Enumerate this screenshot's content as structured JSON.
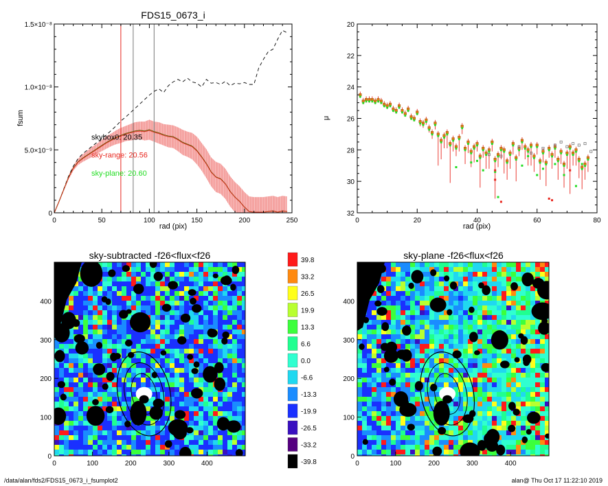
{
  "footer": {
    "left": "/data/alan/fds2/FDS15_0673_i_fsumplot2",
    "right": "alan@  Thu Oct 17 11:22:10 2019"
  },
  "colors": {
    "red": "#e8261e",
    "band": "#f4a3a3",
    "green": "#22dd22",
    "grey": "#777777",
    "orange": "#e07a10"
  },
  "chart_data": [
    {
      "type": "line",
      "title": "FDS15_0673_i",
      "xlabel": "rad (pix)",
      "ylabel": "fsum",
      "xlim": [
        0,
        250
      ],
      "ylim": [
        0,
        1.5e-08
      ],
      "x_ticks": [
        "0",
        "50",
        "100",
        "150",
        "200",
        "250"
      ],
      "y_ticks": [
        "0",
        "5.0×10⁻⁹",
        "1.0×10⁻⁸",
        "1.5×10⁻⁸"
      ],
      "y_tick_values": [
        0,
        5e-09,
        1e-08,
        1.5e-08
      ],
      "vlines": [
        {
          "x": 70,
          "color": "red"
        },
        {
          "x": 83,
          "color": "grey"
        },
        {
          "x": 105,
          "color": "grey"
        }
      ],
      "annotations": [
        {
          "text": "skybox0: 20.35",
          "color": "black",
          "x": 39,
          "y": 5.8e-09
        },
        {
          "text": "sky-range: 20.56",
          "color": "red",
          "x": 39,
          "y": 4.4e-09
        },
        {
          "text": "sky-plane: 20.60",
          "color": "green",
          "x": 39,
          "y": 2.95e-09
        }
      ],
      "series": [
        {
          "style": "dashed",
          "x": [
            0,
            5,
            10,
            15,
            20,
            25,
            30,
            35,
            40,
            45,
            50,
            55,
            60,
            65,
            70,
            75,
            80,
            85,
            90,
            95,
            100,
            105,
            110,
            115,
            120,
            125,
            130,
            135,
            140,
            145,
            150,
            155,
            160,
            165,
            170,
            175,
            180,
            185,
            190,
            195,
            200,
            205,
            210,
            215,
            220,
            225,
            230,
            235,
            240,
            245
          ],
          "y": [
            0,
            9e-10,
            1.9e-09,
            2.9e-09,
            3.7e-09,
            4.3e-09,
            4.7e-09,
            5e-09,
            5.3e-09,
            5.6e-09,
            5.9e-09,
            6.2e-09,
            6.55e-09,
            6.9e-09,
            7.3e-09,
            7.6e-09,
            7.95e-09,
            8.3e-09,
            8.65e-09,
            9e-09,
            9.35e-09,
            9.65e-09,
            9.85e-09,
            9.55e-09,
            1.01e-08,
            1.04e-08,
            1.06e-08,
            1.04e-08,
            1.07e-08,
            1.04e-08,
            1.03e-08,
            1e-08,
            1.06e-08,
            1.03e-08,
            1.035e-08,
            1.02e-08,
            1.045e-08,
            1.01e-08,
            1.03e-08,
            1.025e-08,
            1.035e-08,
            1.02e-08,
            1.02e-08,
            1.15e-08,
            1.22e-08,
            1.28e-08,
            1.3e-08,
            1.38e-08,
            1.45e-08,
            1.43e-08
          ]
        },
        {
          "style": "solid-with-band",
          "x": [
            0,
            5,
            10,
            15,
            20,
            25,
            30,
            35,
            40,
            45,
            50,
            55,
            60,
            65,
            70,
            75,
            80,
            85,
            90,
            95,
            100,
            105,
            110,
            115,
            120,
            125,
            130,
            135,
            140,
            145,
            150,
            155,
            160,
            165,
            170,
            175,
            180,
            185,
            190,
            195,
            200,
            205,
            210,
            215,
            220,
            225,
            230,
            235,
            240,
            245
          ],
          "y": [
            0,
            9e-10,
            1.85e-09,
            2.8e-09,
            3.55e-09,
            4.05e-09,
            4.35e-09,
            4.6e-09,
            4.85e-09,
            5.1e-09,
            5.35e-09,
            5.6e-09,
            5.8e-09,
            6e-09,
            6.15e-09,
            6.3e-09,
            6.4e-09,
            6.5e-09,
            6.55e-09,
            6.5e-09,
            6.6e-09,
            6.45e-09,
            6.35e-09,
            6.2e-09,
            6.1e-09,
            6.05e-09,
            5.85e-09,
            5.6e-09,
            5.45e-09,
            5.3e-09,
            4.95e-09,
            4.45e-09,
            3.9e-09,
            3.25e-09,
            2.85e-09,
            2.7e-09,
            2.3e-09,
            1.7e-09,
            1.25e-09,
            9e-10,
            4.5e-10,
            1e-10,
            5e-11,
            5e-11,
            5e-11,
            1e-10,
            1.5e-10,
            5e-11,
            1.5e-10,
            1e-10
          ],
          "err": [
            0,
            5e-11,
            1e-10,
            1.5e-10,
            2e-10,
            2.5e-10,
            3e-10,
            3.5e-10,
            4e-10,
            4e-10,
            4.5e-10,
            5e-10,
            5e-10,
            5.5e-10,
            6e-10,
            6e-10,
            6.5e-10,
            7e-10,
            7e-10,
            7.5e-10,
            8e-10,
            8e-10,
            8.5e-10,
            8.5e-10,
            9e-10,
            9e-10,
            9.5e-10,
            1e-09,
            1e-09,
            1.05e-09,
            1.1e-09,
            1.1e-09,
            1.15e-09,
            1.15e-09,
            1.2e-09,
            1.2e-09,
            1.2e-09,
            1.2e-09,
            1.2e-09,
            1.2e-09,
            1.2e-09,
            1.2e-09,
            1.2e-09,
            1.2e-09,
            1.2e-09,
            1.2e-09,
            1.2e-09,
            1.2e-09,
            1.2e-09,
            1.2e-09
          ]
        }
      ]
    },
    {
      "type": "scatter",
      "title": "",
      "xlabel": "rad (pix)",
      "ylabel": "μ",
      "xlim": [
        0,
        80
      ],
      "ylim": [
        32,
        20
      ],
      "x_ticks": [
        "0",
        "20",
        "40",
        "60",
        "80"
      ],
      "y_ticks": [
        "20",
        "22",
        "24",
        "26",
        "28",
        "30",
        "32"
      ],
      "points": {
        "x": [
          1,
          2,
          3,
          4,
          5,
          6,
          7,
          8,
          9,
          10,
          11,
          12,
          13,
          14,
          15,
          16,
          17,
          18,
          19,
          20,
          21,
          22,
          23,
          24,
          25,
          26,
          27,
          28,
          29,
          30,
          31,
          32,
          33,
          34,
          35,
          36,
          37,
          38,
          39,
          40,
          41,
          42,
          43,
          44,
          45,
          46,
          47,
          48,
          49,
          50,
          51,
          52,
          53,
          54,
          55,
          56,
          57,
          58,
          59,
          60,
          61,
          62,
          63,
          64,
          65,
          66,
          67,
          68,
          69,
          70,
          71,
          72,
          73,
          74,
          75,
          76,
          77
        ],
        "orange": [
          24.5,
          24.9,
          24.8,
          24.8,
          24.8,
          24.9,
          24.8,
          24.9,
          25.1,
          25.2,
          25.1,
          25.4,
          25.5,
          25.2,
          25.5,
          25.7,
          25.4,
          25.9,
          26.0,
          25.6,
          26.2,
          26.3,
          26.1,
          26.6,
          26.9,
          26.3,
          27.0,
          27.4,
          27.1,
          26.9,
          27.6,
          27.3,
          27.8,
          27.2,
          26.5,
          27.9,
          27.5,
          28.1,
          27.8,
          27.6,
          28.4,
          27.9,
          28.2,
          28.0,
          27.5,
          28.6,
          28.3,
          27.9,
          28.0,
          28.7,
          28.2,
          27.6,
          28.5,
          27.9,
          27.4,
          27.8,
          28.0,
          27.7,
          28.4,
          27.7,
          28.7,
          28.1,
          28.8,
          27.9,
          28.3,
          27.8,
          28.6,
          28.1,
          28.9,
          28.2,
          27.8,
          28.2,
          28.0,
          28.6,
          29.1,
          28.9,
          28.5
        ],
        "err": [
          0.2,
          0.2,
          0.2,
          0.2,
          0.2,
          0.2,
          0.2,
          0.2,
          0.2,
          0.2,
          0.2,
          0.2,
          0.2,
          0.2,
          0.2,
          0.2,
          0.2,
          0.2,
          0.2,
          0.2,
          0.3,
          0.3,
          0.3,
          0.3,
          0.4,
          0.4,
          2.0,
          1.2,
          0.8,
          1.0,
          2.5,
          0.8,
          0.6,
          0.9,
          0.5,
          1.0,
          0.7,
          1.0,
          1.0,
          0.5,
          2.0,
          0.6,
          1.0,
          1.2,
          0.6,
          2.5,
          0.8,
          0.7,
          1.5,
          1.2,
          1.0,
          0.7,
          1.5,
          0.5,
          0.6,
          0.8,
          1.0,
          1.3,
          1.0,
          0.6,
          1.2,
          0.7,
          1.5,
          0.6,
          0.9,
          0.7,
          1.3,
          0.8,
          1.5,
          1.0,
          3.0,
          0.8,
          1.0,
          1.2,
          1.4,
          1.0,
          0.9
        ],
        "green_special": [
          [
            33,
            29.1
          ],
          [
            38,
            28.8
          ],
          [
            40,
            28.7
          ],
          [
            42,
            29.3
          ],
          [
            46,
            29.4
          ],
          [
            47,
            31.0
          ],
          [
            55,
            29.0
          ],
          [
            57,
            28.4
          ],
          [
            60,
            29.6
          ],
          [
            62,
            29.2
          ],
          [
            66,
            28.9
          ],
          [
            69,
            29.6
          ],
          [
            73,
            30.3
          ],
          [
            75,
            28.9
          ]
        ],
        "red_special": [
          [
            46,
            29.9
          ],
          [
            46,
            29.3
          ],
          [
            48,
            31.3
          ],
          [
            64,
            31.1
          ],
          [
            65,
            31.2
          ],
          [
            71,
            29.3
          ]
        ],
        "grey_special": [
          [
            44,
            28.3
          ],
          [
            48,
            28.4
          ],
          [
            54,
            27.8
          ],
          [
            58,
            28.2
          ],
          [
            62,
            27.9
          ],
          [
            66,
            27.7
          ],
          [
            68,
            27.5
          ],
          [
            70,
            27.8
          ],
          [
            72,
            27.6
          ],
          [
            74,
            27.7
          ],
          [
            76,
            27.6
          ],
          [
            78,
            28.1
          ]
        ]
      }
    },
    {
      "type": "heatmap",
      "title": "sky-subtracted -f26<flux<f26",
      "xlim": [
        0,
        500
      ],
      "ylim": [
        0,
        500
      ],
      "x_ticks": [
        "0",
        "100",
        "200",
        "300",
        "400"
      ],
      "y_ticks": [
        "0",
        "100",
        "200",
        "300",
        "400"
      ]
    },
    {
      "type": "heatmap",
      "title": "sky-plane -f26<flux<f26",
      "xlim": [
        0,
        500
      ],
      "ylim": [
        0,
        500
      ],
      "x_ticks": [
        "0",
        "100",
        "200",
        "300",
        "400"
      ],
      "y_ticks": [
        "0",
        "100",
        "200",
        "300",
        "400"
      ]
    }
  ],
  "colorbar": {
    "labels": [
      "39.8",
      "33.2",
      "26.5",
      "19.9",
      "13.3",
      "6.6",
      "0.0",
      "-6.6",
      "-13.3",
      "-19.9",
      "-26.5",
      "-33.2",
      "-39.8"
    ],
    "colors": [
      "#ff1a1a",
      "#ff8a10",
      "#ffff1a",
      "#b8ff30",
      "#3cff3c",
      "#20ff90",
      "#30ffd0",
      "#20d8f0",
      "#1a8cff",
      "#1a30ff",
      "#3a10c0",
      "#550080",
      "#000000"
    ]
  }
}
